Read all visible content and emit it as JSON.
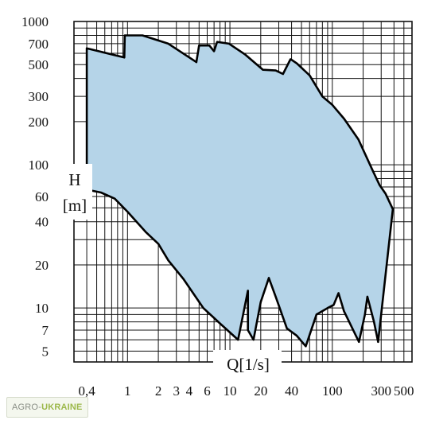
{
  "chart_data": {
    "type": "area",
    "title": "",
    "xlabel": "Q[1/s]",
    "ylabel_top": "H",
    "ylabel_bottom": "[m]",
    "x_scale": "log",
    "y_scale": "log",
    "xlim": [
      0.3,
      600
    ],
    "ylim": [
      4.2,
      1000
    ],
    "grid": true,
    "x_ticks": [
      "0,4",
      "1",
      "2",
      "3",
      "4",
      "6",
      "10",
      "20",
      "40",
      "100",
      "300",
      "500"
    ],
    "x_tick_values": [
      0.4,
      1,
      2,
      3,
      4,
      6,
      10,
      20,
      40,
      100,
      300,
      500
    ],
    "y_ticks": [
      "1000",
      "700",
      "500",
      "300",
      "200",
      "100",
      "60",
      "40",
      "20",
      "10",
      "7",
      "5"
    ],
    "y_tick_values": [
      1000,
      700,
      500,
      300,
      200,
      100,
      60,
      40,
      20,
      10,
      7,
      5
    ],
    "envelope": {
      "fill": "#b5d4e8",
      "outline": "#000000",
      "x": [
        0.4,
        0.93,
        0.94,
        1.4,
        2.5,
        4.7,
        5.0,
        6.3,
        7.0,
        7.5,
        9.8,
        14.0,
        21.0,
        28.0,
        33.0,
        39.0,
        40.0,
        45.0,
        60.0,
        80.0,
        100.0,
        130.0,
        180.0,
        250.0,
        290.0,
        330.0,
        390.0,
        280.0,
        255.0,
        220.0,
        208.0,
        182.0,
        130.0,
        115.0,
        103.0,
        90.0,
        70.0,
        55.0,
        45.0,
        36.0,
        28.0,
        24.0,
        20.0,
        17.0,
        15.0,
        15.0,
        12.0,
        8.0,
        5.5,
        3.5,
        2.5,
        2.0,
        1.5,
        1.0,
        0.75,
        0.55,
        0.4,
        0.4
      ],
      "y": [
        650,
        560,
        800,
        800,
        700,
        520,
        680,
        680,
        620,
        720,
        700,
        590,
        460,
        455,
        430,
        545,
        540,
        510,
        420,
        300,
        262,
        210,
        150,
        90,
        72,
        63,
        49,
        5.8,
        8.0,
        12.0,
        9.0,
        5.8,
        9.5,
        12.7,
        10.5,
        10.0,
        9.0,
        5.4,
        6.4,
        7.2,
        12.0,
        16.2,
        11.0,
        6.0,
        7.0,
        13.2,
        6.0,
        7.8,
        10.0,
        16.0,
        21.5,
        28.0,
        34.0,
        47.0,
        58.0,
        64.0,
        67.0,
        650
      ]
    }
  },
  "watermark": {
    "part1": "AGRO-",
    "part2": "UKRAINE"
  }
}
